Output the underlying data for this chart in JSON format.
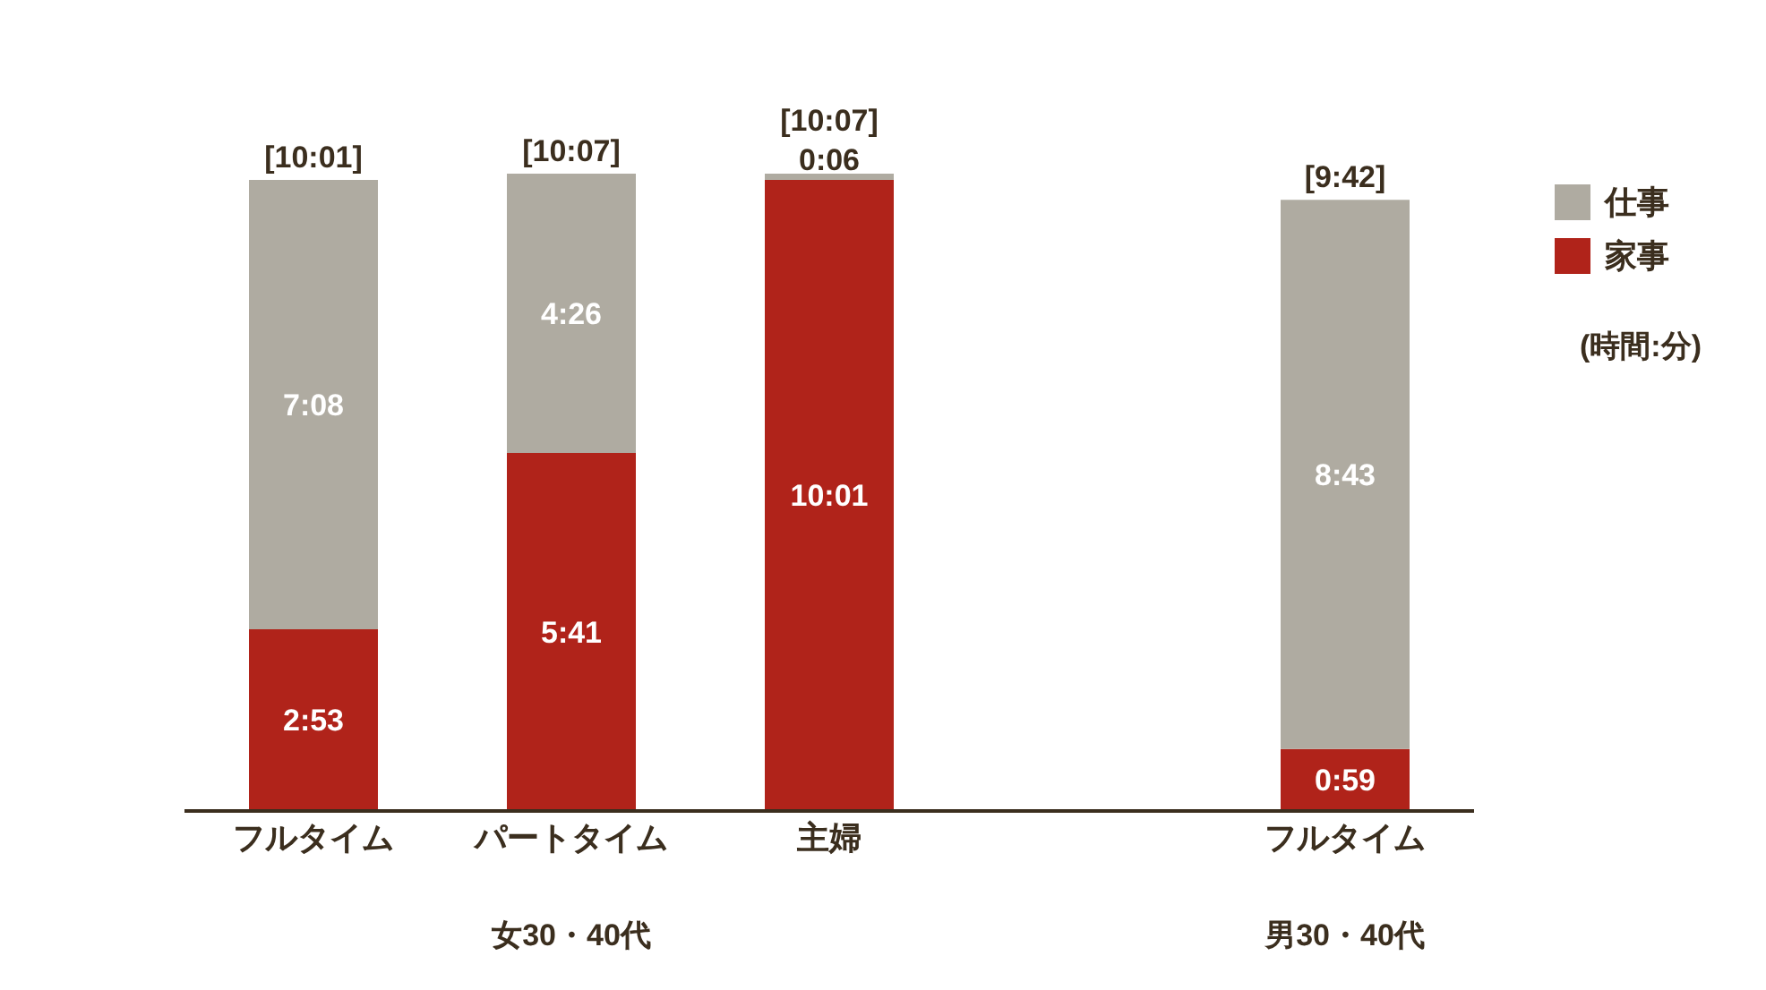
{
  "chart_data": {
    "type": "bar",
    "stacked": true,
    "categories": [
      "フルタイム",
      "パートタイム",
      "主婦",
      null,
      "フルタイム"
    ],
    "series": [
      {
        "name": "家事",
        "color": "#b0231a",
        "values": [
          2.883,
          5.683,
          10.017,
          null,
          0.983
        ],
        "value_labels": [
          "2:53",
          "5:41",
          "10:01",
          null,
          "0:59"
        ]
      },
      {
        "name": "仕事",
        "color": "#afaba1",
        "values": [
          7.133,
          4.433,
          0.1,
          null,
          8.717
        ],
        "value_labels": [
          "7:08",
          "4:26",
          "0:06",
          null,
          "8:43"
        ]
      }
    ],
    "totals": [
      "[10:01]",
      "[10:07]",
      "[10:07]",
      null,
      "[9:42]"
    ],
    "annotations": [
      "女30・40代",
      "男30・40代",
      "(時間:分)"
    ],
    "legend": "top right",
    "grid": false
  }
}
